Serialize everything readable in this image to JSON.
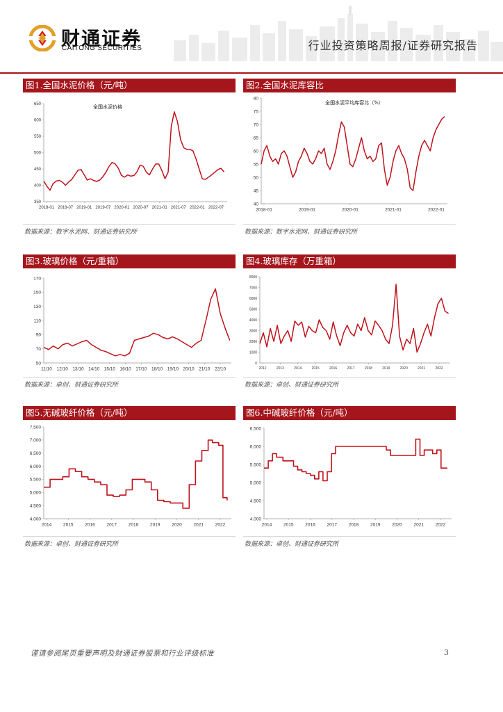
{
  "header": {
    "logo_cn": "财通证券",
    "logo_en": "CAITONG SECURITIES",
    "report_type": "行业投资策略周报/证券研究报告"
  },
  "footer": {
    "disclaimer": "谨请参阅尾页重要声明及财通证券股票和行业评级标准",
    "page_number": "3"
  },
  "figures": [
    {
      "title": "图1.全国水泥价格（元/吨）",
      "source": "数据来源：数字水泥网、财通证券研究所"
    },
    {
      "title": "图2.全国水泥库容比",
      "source": "数据来源：数字水泥网、财通证券研究所"
    },
    {
      "title": "图3.玻璃价格（元/重箱）",
      "source": "数据来源：卓创、财通证券研究所"
    },
    {
      "title": "图4.玻璃库存（万重箱）",
      "source": "数据来源：卓创、财通证券研究所"
    },
    {
      "title": "图5.无碱玻纤价格（元/吨）",
      "source": "数据来源：卓创、财通证券研究所"
    },
    {
      "title": "图6.中碱玻纤价格（元/吨）",
      "source": "数据来源：卓创、财通证券研究所"
    }
  ],
  "colors": {
    "accent": "#a5161c",
    "line": "#c0121b",
    "axis": "#999999"
  },
  "chart_data": [
    {
      "type": "line",
      "title": "全国水泥价格",
      "x_ticks": [
        "2018-01",
        "2018-07",
        "2019-01",
        "2019-07",
        "2020-01",
        "2020-07",
        "2021-01",
        "2021-07",
        "2022-01",
        "2022-07"
      ],
      "y_ticks": [
        "350",
        "400",
        "450",
        "500",
        "550",
        "600",
        "650"
      ],
      "ylim": [
        350,
        650
      ],
      "xlim": [
        0,
        59
      ],
      "x": [
        0,
        1,
        2,
        3,
        4,
        5,
        6,
        7,
        8,
        9,
        10,
        11,
        12,
        13,
        14,
        15,
        16,
        17,
        18,
        19,
        20,
        21,
        22,
        23,
        24,
        25,
        26,
        27,
        28,
        29,
        30,
        31,
        32,
        33,
        34,
        35,
        36,
        37,
        38,
        39,
        40,
        41,
        42,
        43,
        44,
        45,
        46,
        47,
        48,
        49,
        50,
        51,
        52,
        53,
        54,
        55,
        56,
        57,
        58
      ],
      "values": [
        413,
        397,
        385,
        405,
        413,
        415,
        410,
        400,
        410,
        418,
        432,
        446,
        448,
        432,
        416,
        420,
        415,
        412,
        416,
        426,
        440,
        458,
        470,
        465,
        452,
        430,
        425,
        432,
        428,
        430,
        441,
        462,
        458,
        440,
        432,
        450,
        465,
        465,
        445,
        420,
        440,
        580,
        625,
        595,
        540,
        515,
        510,
        510,
        505,
        480,
        450,
        420,
        418,
        425,
        432,
        440,
        448,
        452,
        441
      ]
    },
    {
      "type": "line",
      "title": "全国水泥平均库容比（%）",
      "x_ticks": [
        "2018-01",
        "2019-01",
        "2020-01",
        "2021-01",
        "2022-01"
      ],
      "y_ticks": [
        "40",
        "45",
        "50",
        "55",
        "60",
        "65",
        "70",
        "75",
        "80"
      ],
      "ylim": [
        40,
        80
      ],
      "xlim": [
        0,
        65
      ],
      "x": [
        0,
        1,
        2,
        3,
        4,
        5,
        6,
        7,
        8,
        9,
        10,
        11,
        12,
        13,
        14,
        15,
        16,
        17,
        18,
        19,
        20,
        21,
        22,
        23,
        24,
        25,
        26,
        27,
        28,
        29,
        30,
        31,
        32,
        33,
        34,
        35,
        36,
        37,
        38,
        39,
        40,
        41,
        42,
        43,
        44,
        45,
        46,
        47,
        48,
        49,
        50,
        51,
        52,
        53,
        54,
        55,
        56,
        57,
        58,
        59,
        60,
        61,
        62,
        63,
        64
      ],
      "values": [
        55,
        60,
        62,
        58,
        56,
        57,
        55,
        59,
        60,
        58,
        54,
        50,
        52,
        56,
        58,
        61,
        59,
        56,
        55,
        57,
        60,
        59,
        61,
        55,
        53,
        56,
        60,
        66,
        71,
        69,
        62,
        55,
        54,
        57,
        61,
        65,
        60,
        57,
        58,
        56,
        57,
        62,
        63,
        53,
        47,
        50,
        56,
        60,
        62,
        59,
        57,
        53,
        46,
        45,
        52,
        58,
        62,
        64,
        62,
        60,
        65,
        68,
        70,
        72,
        73
      ]
    },
    {
      "type": "line",
      "title": "玻璃价格",
      "x_ticks": [
        "11/10",
        "12/10",
        "13/10",
        "14/10",
        "15/10",
        "16/10",
        "17/10",
        "18/10",
        "19/10",
        "20/10",
        "21/10",
        "22/10"
      ],
      "y_ticks": [
        "50",
        "70",
        "90",
        "110",
        "130",
        "150",
        "170"
      ],
      "ylim": [
        50,
        170
      ],
      "xlim": [
        0,
        11.8
      ],
      "x": [
        0,
        0.3,
        0.6,
        0.9,
        1.2,
        1.5,
        1.8,
        2.1,
        2.4,
        2.7,
        3.0,
        3.3,
        3.6,
        3.9,
        4.2,
        4.5,
        4.8,
        5.1,
        5.4,
        5.7,
        6.0,
        6.3,
        6.6,
        6.9,
        7.2,
        7.5,
        7.8,
        8.1,
        8.4,
        8.7,
        9.0,
        9.3,
        9.6,
        9.9,
        10.2,
        10.5,
        10.8,
        11.1,
        11.4,
        11.7
      ],
      "values": [
        72,
        69,
        74,
        70,
        76,
        78,
        74,
        77,
        80,
        82,
        76,
        72,
        68,
        66,
        63,
        60,
        62,
        60,
        64,
        82,
        84,
        86,
        88,
        92,
        90,
        86,
        84,
        87,
        84,
        80,
        76,
        72,
        78,
        82,
        110,
        140,
        155,
        120,
        100,
        82
      ]
    },
    {
      "type": "line",
      "title": "玻璃库存",
      "x_ticks": [
        "2012",
        "2013",
        "2014",
        "2015",
        "2016",
        "2017",
        "2018",
        "2019",
        "2020",
        "2021",
        "2022"
      ],
      "y_ticks": [
        "0",
        "1000",
        "2000",
        "3000",
        "4000",
        "5000",
        "6000",
        "7000",
        "8000"
      ],
      "ylim": [
        0,
        8000
      ],
      "xlim": [
        0,
        10.9
      ],
      "x": [
        0,
        0.2,
        0.4,
        0.6,
        0.8,
        1.0,
        1.2,
        1.4,
        1.6,
        1.8,
        2.0,
        2.2,
        2.4,
        2.6,
        2.8,
        3.0,
        3.2,
        3.4,
        3.6,
        3.8,
        4.0,
        4.2,
        4.4,
        4.6,
        4.8,
        5.0,
        5.2,
        5.4,
        5.6,
        5.8,
        6.0,
        6.2,
        6.4,
        6.6,
        6.8,
        7.0,
        7.2,
        7.4,
        7.6,
        7.8,
        8.0,
        8.2,
        8.4,
        8.6,
        8.8,
        9.0,
        9.2,
        9.4,
        9.6,
        9.8,
        10.0,
        10.2,
        10.4,
        10.6,
        10.8
      ],
      "values": [
        1800,
        2800,
        1500,
        3200,
        2000,
        3500,
        1800,
        2500,
        3000,
        2000,
        3900,
        3500,
        3800,
        2400,
        3400,
        3000,
        2800,
        4000,
        3300,
        3000,
        2200,
        3800,
        2500,
        1600,
        2800,
        3500,
        2800,
        2500,
        3600,
        3000,
        4200,
        3000,
        2600,
        3900,
        3500,
        3000,
        2200,
        1800,
        3500,
        7300,
        2500,
        1200,
        2200,
        1800,
        3200,
        1000,
        1800,
        2800,
        3600,
        2500,
        4200,
        5500,
        6000,
        4800,
        4600
      ]
    },
    {
      "type": "line",
      "title": "无碱玻纤价格",
      "x_ticks": [
        "2014",
        "2015",
        "2016",
        "2017",
        "2018",
        "2019",
        "2020",
        "2021",
        "2022"
      ],
      "y_ticks": [
        "4,000",
        "4,500",
        "5,000",
        "5,500",
        "6,000",
        "6,500",
        "7,000",
        "7,500"
      ],
      "ylim": [
        4000,
        7500
      ],
      "xlim": [
        0,
        8.9
      ],
      "x": [
        0,
        0.3,
        0.6,
        0.9,
        1.2,
        1.5,
        1.8,
        2.1,
        2.4,
        2.7,
        3.0,
        3.3,
        3.6,
        3.9,
        4.2,
        4.5,
        4.8,
        5.1,
        5.4,
        5.7,
        6.0,
        6.3,
        6.6,
        6.9,
        7.2,
        7.5,
        7.8,
        8.0,
        8.3,
        8.5,
        8.7
      ],
      "values": [
        5200,
        5500,
        5500,
        5600,
        5900,
        5800,
        5600,
        5500,
        5400,
        5300,
        4900,
        4850,
        4900,
        5100,
        5500,
        5500,
        5400,
        5100,
        4700,
        4650,
        4600,
        4600,
        4400,
        5300,
        6200,
        6600,
        7000,
        6900,
        6800,
        4800,
        4700
      ]
    },
    {
      "type": "line",
      "title": "中碱玻纤价格",
      "x_ticks": [
        "2014",
        "2015",
        "2016",
        "2017",
        "2018",
        "2019",
        "2020",
        "2021",
        "2022"
      ],
      "y_ticks": [
        "4.000",
        "4.500",
        "5.000",
        "5.500",
        "6.000",
        "6.500"
      ],
      "ylim": [
        4000,
        6500
      ],
      "xlim": [
        0,
        8.9
      ],
      "x": [
        0,
        0.2,
        0.4,
        0.6,
        0.9,
        1.2,
        1.4,
        1.6,
        1.8,
        2.0,
        2.2,
        2.4,
        2.6,
        2.8,
        3.0,
        3.2,
        3.4,
        3.6,
        4.0,
        5.0,
        5.8,
        6.0,
        6.8,
        7.0,
        7.2,
        7.4,
        7.6,
        8.0,
        8.2,
        8.4,
        8.7
      ],
      "values": [
        5400,
        5600,
        5800,
        5700,
        5600,
        5600,
        5450,
        5350,
        5300,
        5250,
        5200,
        5100,
        5300,
        5050,
        5300,
        5800,
        6000,
        6000,
        6000,
        6000,
        5900,
        5750,
        5750,
        5750,
        6200,
        5750,
        5900,
        5800,
        5900,
        5400,
        5400
      ]
    }
  ]
}
